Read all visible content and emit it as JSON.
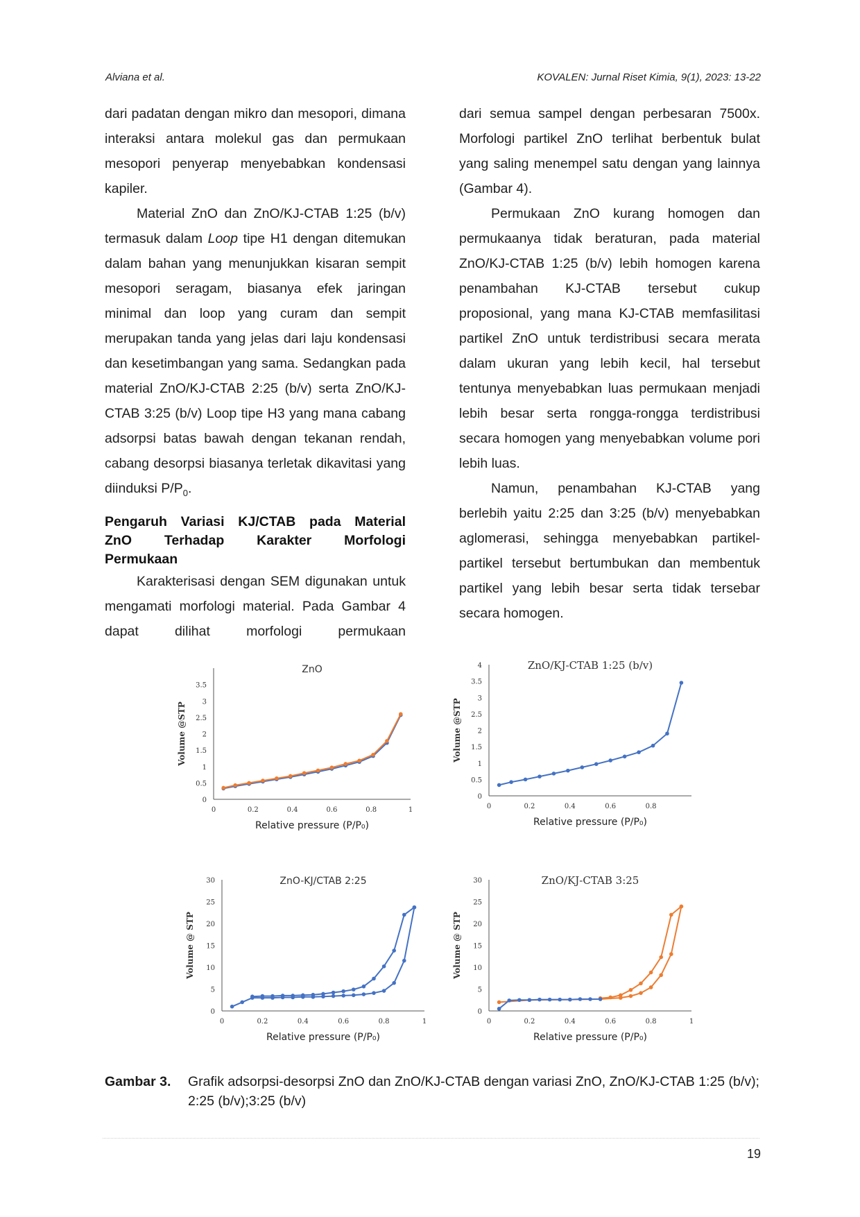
{
  "header": {
    "authors": "Alviana et al.",
    "journal": "KOVALEN: Jurnal Riset Kimia, 9(1), 2023: 13-22"
  },
  "left_column": {
    "para1": "dari padatan dengan mikro dan mesopori, dimana interaksi antara molekul gas dan permukaan mesopori penyerap menyebabkan kondensasi kapiler.",
    "para2_a": "Material ZnO dan ZnO/KJ-CTAB 1:25 (b/v) termasuk dalam ",
    "para2_loop": "Loop",
    "para2_b": " tipe H1 dengan ditemukan dalam bahan yang menunjukkan kisaran sempit mesopori seragam, biasanya efek jaringan minimal dan loop yang curam dan sempit merupakan tanda yang jelas dari laju kondensasi dan kesetimbangan yang sama. Sedangkan pada material ZnO/KJ-CTAB 2:25 (b/v) serta ZnO/KJ-CTAB 3:25 (b/v) Loop tipe H3 yang mana cabang adsorpsi batas bawah dengan tekanan rendah, cabang desorpsi biasanya terletak dikavitasi yang diinduksi P/P",
    "para2_sub": "0",
    "para2_end": ".",
    "heading_line1": "Pengaruh Variasi KJ/CTAB pada Material",
    "heading_line2": "ZnO Terhadap Karakter Morfologi",
    "heading_line3": "Permukaan",
    "para3": "Karakterisasi dengan SEM digunakan untuk mengamati morfologi material. Pada Gambar 4 dapat dilihat morfologi permukaan"
  },
  "right_column": {
    "para1": "dari semua sampel dengan perbesaran 7500x. Morfologi partikel ZnO terlihat berbentuk bulat yang saling menempel satu dengan yang lainnya (Gambar 4).",
    "para2": "Permukaan ZnO kurang homogen dan permukaanya tidak beraturan, pada material ZnO/KJ-CTAB 1:25 (b/v)  lebih homogen karena penambahan KJ-CTAB tersebut cukup proposional, yang mana KJ-CTAB memfasilitasi partikel ZnO  untuk terdistribusi secara merata dalam ukuran yang lebih kecil, hal tersebut tentunya menyebabkan luas permukaan menjadi lebih besar serta rongga-rongga terdistribusi secara homogen yang menyebabkan volume pori lebih luas.",
    "para3": "Namun, penambahan KJ-CTAB yang berlebih yaitu 2:25 dan 3:25 (b/v) menyebabkan aglomerasi, sehingga menyebabkan partikel-partikel tersebut bertumbukan dan membentuk partikel yang lebih besar serta tidak tersebar secara homogen."
  },
  "chart_data": [
    {
      "type": "line",
      "title": "ZnO",
      "xlabel": "Relative pressure (P/P₀)",
      "ylabel": "Volume @STP",
      "xlim": [
        0,
        1
      ],
      "ylim": [
        0,
        4
      ],
      "xticks": [
        "0",
        "0.2",
        "0.4",
        "0.6",
        "0.8",
        "1"
      ],
      "yticks": [
        "0",
        "0.5",
        "1",
        "1.5",
        "2",
        "2.5",
        "3",
        "3.5"
      ],
      "series": [
        {
          "color": "#4472C4",
          "x": [
            0.05,
            0.11,
            0.18,
            0.25,
            0.32,
            0.39,
            0.46,
            0.53,
            0.6,
            0.67,
            0.74,
            0.81,
            0.88,
            0.95
          ],
          "y": [
            0.33,
            0.4,
            0.47,
            0.54,
            0.61,
            0.68,
            0.76,
            0.84,
            0.93,
            1.03,
            1.14,
            1.32,
            1.72,
            2.57
          ]
        },
        {
          "color": "#ED7D31",
          "x": [
            0.05,
            0.11,
            0.18,
            0.25,
            0.32,
            0.39,
            0.46,
            0.53,
            0.6,
            0.67,
            0.74,
            0.81,
            0.88,
            0.95
          ],
          "y": [
            0.35,
            0.43,
            0.5,
            0.57,
            0.64,
            0.71,
            0.8,
            0.88,
            0.97,
            1.08,
            1.18,
            1.36,
            1.78,
            2.6
          ]
        }
      ]
    },
    {
      "type": "line",
      "title": "ZnO/KJ-CTAB  1:25  (b/v)",
      "xlabel": "Relative pressure (P/P₀)",
      "ylabel": "Volume @STP",
      "xlim": [
        0,
        1
      ],
      "ylim": [
        0,
        4
      ],
      "xticks": [
        "0",
        "0.2",
        "0.4",
        "0.6",
        "0.8"
      ],
      "yticks": [
        "0",
        "0.5",
        "1",
        "1.5",
        "2",
        "2.5",
        "3",
        "3.5",
        "4"
      ],
      "series": [
        {
          "color": "#4472C4",
          "x": [
            0.05,
            0.11,
            0.18,
            0.25,
            0.32,
            0.39,
            0.46,
            0.53,
            0.6,
            0.67,
            0.74,
            0.81,
            0.88,
            0.95
          ],
          "y": [
            0.33,
            0.42,
            0.5,
            0.59,
            0.68,
            0.77,
            0.87,
            0.97,
            1.08,
            1.2,
            1.33,
            1.53,
            1.9,
            3.45
          ]
        }
      ]
    },
    {
      "type": "line",
      "title": "ZnO-KJ/CTAB 2:25",
      "xlabel": "Relative pressure (P/P₀)",
      "ylabel": "Volume  @ STP",
      "xlim": [
        0,
        1
      ],
      "ylim": [
        0,
        30
      ],
      "xticks": [
        "0",
        "0.2",
        "0.4",
        "0.6",
        "0.8",
        "1"
      ],
      "yticks": [
        "0",
        "5",
        "10",
        "15",
        "20",
        "25",
        "30"
      ],
      "series": [
        {
          "color": "#4472C4",
          "x": [
            0.05,
            0.1,
            0.15,
            0.2,
            0.25,
            0.3,
            0.35,
            0.4,
            0.45,
            0.5,
            0.55,
            0.6,
            0.65,
            0.7,
            0.75,
            0.8,
            0.85,
            0.9,
            0.95
          ],
          "y": [
            1,
            2,
            3,
            3,
            3,
            3.1,
            3.1,
            3.2,
            3.2,
            3.3,
            3.4,
            3.5,
            3.6,
            3.8,
            4.1,
            4.6,
            6.4,
            11.5,
            23.7
          ]
        },
        {
          "color": "#4472C4",
          "x": [
            0.15,
            0.2,
            0.25,
            0.3,
            0.35,
            0.4,
            0.45,
            0.5,
            0.55,
            0.6,
            0.65,
            0.7,
            0.75,
            0.8,
            0.85,
            0.9,
            0.95
          ],
          "y": [
            3.3,
            3.4,
            3.4,
            3.5,
            3.5,
            3.6,
            3.7,
            3.9,
            4.2,
            4.5,
            4.9,
            5.6,
            7.4,
            10.2,
            13.8,
            22,
            23.7
          ]
        }
      ]
    },
    {
      "type": "line",
      "title": "ZnO/KJ-CTAB 3:25",
      "xlabel": "Relative pressure (P/P₀)",
      "ylabel": "Volume  @ STP",
      "xlim": [
        0,
        1
      ],
      "ylim": [
        0,
        30
      ],
      "xticks": [
        "0",
        "0.2",
        "0.4",
        "0.6",
        "0.8",
        "1"
      ],
      "yticks": [
        "0",
        "5",
        "10",
        "15",
        "20",
        "25",
        "30"
      ],
      "series": [
        {
          "color": "#ED7D31",
          "x": [
            0.05,
            0.2,
            0.4,
            0.55,
            0.65,
            0.7,
            0.75,
            0.8,
            0.85,
            0.9,
            0.95
          ],
          "y": [
            2,
            2.5,
            2.6,
            2.7,
            3,
            3.4,
            4.1,
            5.4,
            8.2,
            13,
            23.9
          ]
        },
        {
          "color": "#ED7D31",
          "x": [
            0.95,
            0.9,
            0.85,
            0.8,
            0.75,
            0.7,
            0.65,
            0.6,
            0.55
          ],
          "y": [
            23.9,
            22,
            12.3,
            8.8,
            6.3,
            4.8,
            3.6,
            3.1,
            2.9
          ]
        },
        {
          "color": "#4472C4",
          "x": [
            0.05,
            0.1,
            0.15,
            0.2,
            0.25,
            0.3,
            0.35,
            0.4,
            0.45,
            0.5,
            0.55
          ],
          "y": [
            0.5,
            2.4,
            2.5,
            2.5,
            2.6,
            2.6,
            2.6,
            2.6,
            2.7,
            2.7,
            2.7
          ]
        }
      ]
    }
  ],
  "caption": {
    "label": "Gambar 3.",
    "text": "Grafik adsorpsi-desorpsi ZnO dan ZnO/KJ-CTAB dengan variasi ZnO, ZnO/KJ-CTAB 1:25 (b/v); 2:25 (b/v);3:25 (b/v)"
  },
  "page_number": "19"
}
